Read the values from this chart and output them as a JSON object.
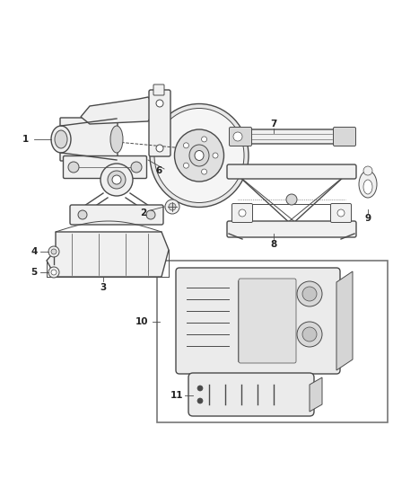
{
  "background_color": "#ffffff",
  "line_color": "#4a4a4a",
  "light_line": "#888888",
  "fill_light": "#f0f0f0",
  "fill_mid": "#d8d8d8",
  "fig_width": 4.38,
  "fig_height": 5.33,
  "dpi": 100,
  "label_fontsize": 7.5,
  "label_color": "#222222"
}
